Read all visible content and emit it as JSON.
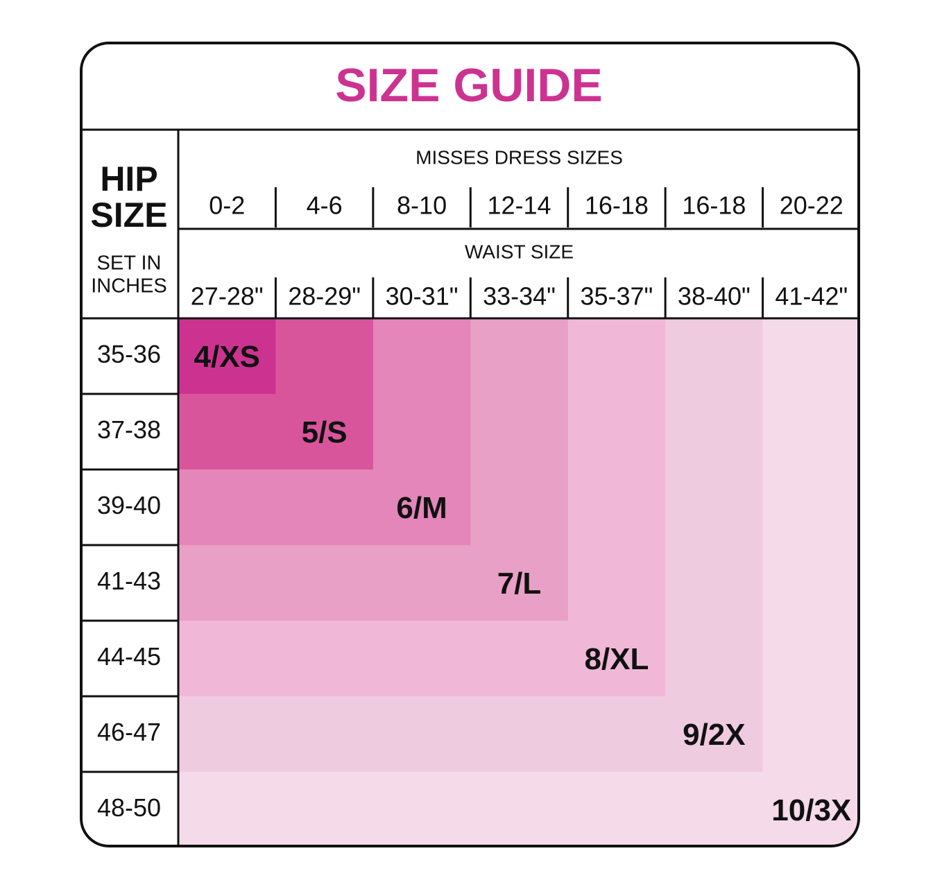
{
  "title": "SIZE GUIDE",
  "hip_header": {
    "title_lines": [
      "HIP",
      "SIZE"
    ],
    "subtitle_lines": [
      "SET IN",
      "INCHES"
    ]
  },
  "dress_sizes": {
    "label": "MISSES DRESS SIZES",
    "columns": [
      "0-2",
      "4-6",
      "8-10",
      "12-14",
      "16-18",
      "16-18",
      "20-22"
    ]
  },
  "waist_sizes": {
    "label": "WAIST SIZE",
    "columns": [
      "27-28\"",
      "28-29\"",
      "30-31\"",
      "33-34\"",
      "35-37\"",
      "38-40\"",
      "41-42\""
    ]
  },
  "rows": [
    {
      "hip": "35-36",
      "size": "4/XS"
    },
    {
      "hip": "37-38",
      "size": "5/S"
    },
    {
      "hip": "39-40",
      "size": "6/M"
    },
    {
      "hip": "41-43",
      "size": "7/L"
    },
    {
      "hip": "44-45",
      "size": "8/XL"
    },
    {
      "hip": "46-47",
      "size": "9/2X"
    },
    {
      "hip": "48-50",
      "size": "10/3X"
    }
  ]
}
